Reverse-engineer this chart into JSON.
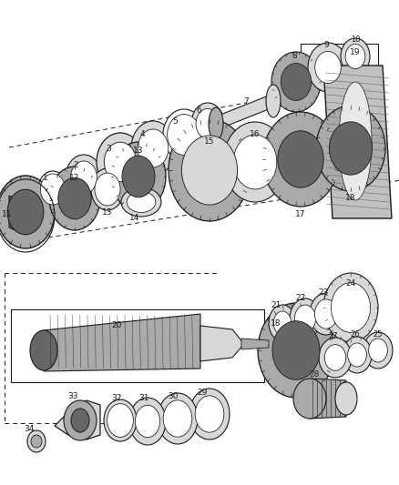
{
  "bg": "#ffffff",
  "fg": "#1a1a1a",
  "gray_light": "#d8d8d8",
  "gray_med": "#aaaaaa",
  "gray_dark": "#666666",
  "gray_gear": "#888888",
  "figsize": [
    4.38,
    5.33
  ],
  "dpi": 100
}
